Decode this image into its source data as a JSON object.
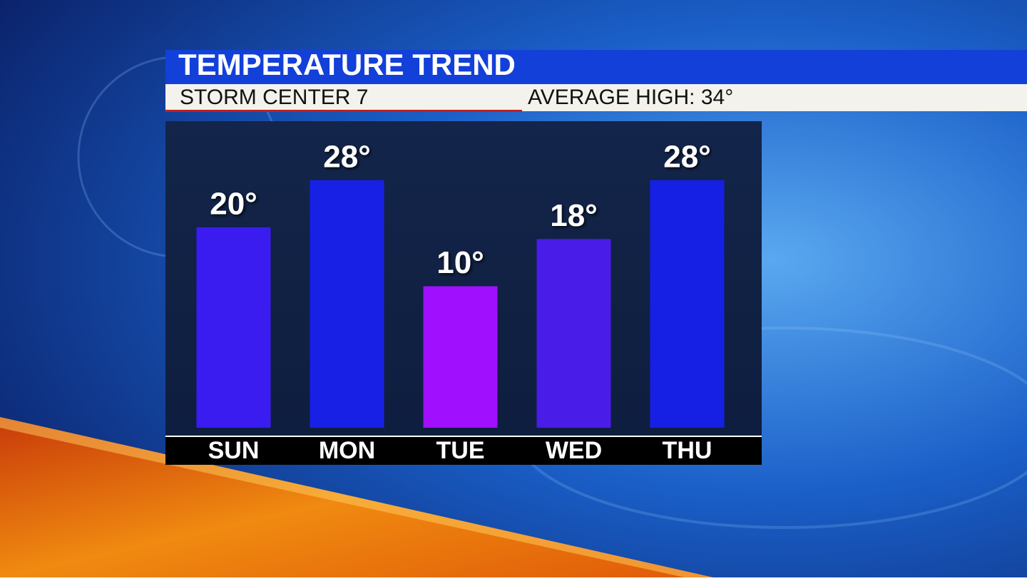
{
  "chart_data": {
    "type": "bar",
    "title": "TEMPERATURE TREND",
    "subtitle": "STORM CENTER 7",
    "annotation": "AVERAGE HIGH: 34°",
    "categories": [
      "SUN",
      "MON",
      "TUE",
      "WED",
      "THU"
    ],
    "values": [
      20,
      28,
      10,
      18,
      28
    ],
    "value_labels": [
      "20°",
      "28°",
      "10°",
      "18°",
      "28°"
    ],
    "colors": [
      "#3a1cf0",
      "#1820e6",
      "#a010ff",
      "#4a1ce8",
      "#1620e4"
    ],
    "ylim": [
      -14,
      38
    ]
  }
}
